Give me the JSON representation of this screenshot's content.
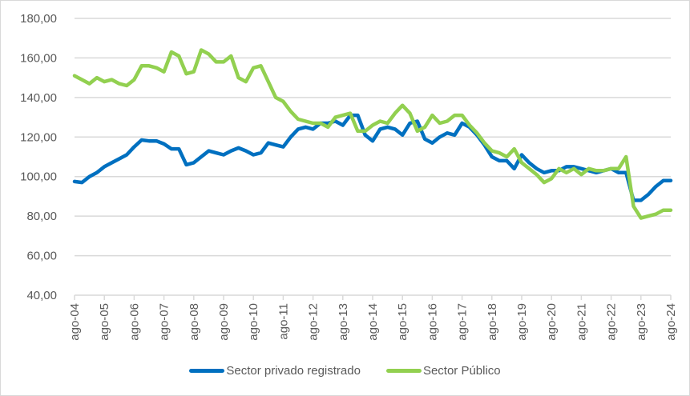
{
  "chart_data": {
    "type": "line",
    "title": "",
    "xlabel": "",
    "ylabel": "",
    "ylim": [
      40,
      180
    ],
    "yticks": [
      "40,00",
      "60,00",
      "80,00",
      "100,00",
      "120,00",
      "140,00",
      "160,00",
      "180,00"
    ],
    "ytick_values": [
      40,
      60,
      80,
      100,
      120,
      140,
      160,
      180
    ],
    "xticks": [
      "ago-04",
      "ago-05",
      "ago-06",
      "ago-07",
      "ago-08",
      "ago-09",
      "ago-10",
      "ago-11",
      "ago-12",
      "ago-13",
      "ago-14",
      "ago-15",
      "ago-16",
      "ago-17",
      "ago-18",
      "ago-19",
      "ago-20",
      "ago-21",
      "ago-22",
      "ago-23",
      "ago-24"
    ],
    "x_step_years": 0.25,
    "grid": true,
    "legend_position": "bottom",
    "series": [
      {
        "name": "Sector privado registrado",
        "color": "#0070C0",
        "values": [
          97.5,
          97,
          100,
          102,
          105,
          107,
          109,
          111,
          115,
          118.5,
          118,
          118,
          116.5,
          114,
          114,
          106,
          107,
          110,
          113,
          112,
          111,
          113,
          114.5,
          113,
          111,
          112,
          117,
          116,
          115,
          120,
          124,
          125,
          124,
          127,
          127,
          128,
          126,
          131,
          131,
          121,
          118,
          124,
          125,
          124,
          121,
          127,
          128,
          119,
          117,
          120,
          122,
          121,
          127,
          125,
          121,
          116,
          110,
          108,
          108,
          104,
          111,
          107,
          104,
          102,
          103,
          103,
          105,
          105,
          104,
          103,
          102,
          103,
          104,
          102,
          102,
          88,
          88,
          91,
          95,
          98,
          98
        ]
      },
      {
        "name": "Sector Público",
        "color": "#92D050",
        "values": [
          151,
          149,
          147,
          150,
          148,
          149,
          147,
          146,
          149,
          156,
          156,
          155,
          153,
          163,
          161,
          152,
          153,
          164,
          162,
          158,
          158,
          161,
          150,
          148,
          155,
          156,
          148,
          140,
          138,
          133,
          129,
          128,
          127,
          127,
          125,
          130,
          131,
          132,
          123,
          123,
          126,
          128,
          127,
          132,
          136,
          132,
          123,
          125,
          131,
          127,
          128,
          131,
          131,
          126,
          122,
          117,
          113,
          112,
          110,
          114,
          107,
          104,
          101,
          97,
          99,
          104,
          102,
          104,
          101,
          104,
          103,
          103,
          104,
          104,
          110,
          85,
          79,
          80,
          81,
          83,
          83
        ]
      }
    ]
  }
}
